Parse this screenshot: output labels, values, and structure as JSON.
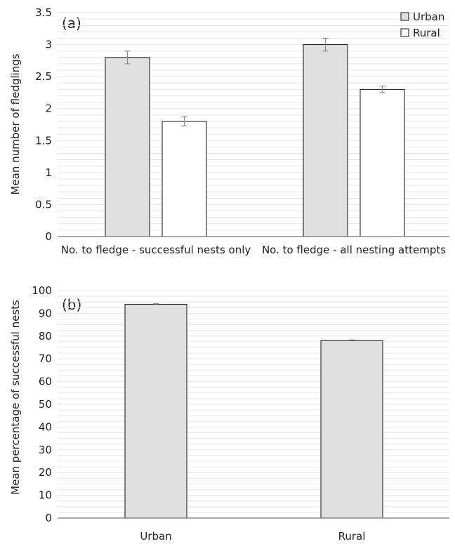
{
  "chart_data": [
    {
      "type": "bar",
      "panel_label": "(a)",
      "categories": [
        "No. to fledge - successful nests only",
        "No. to fledge - all nesting attempts"
      ],
      "series": [
        {
          "name": "Urban",
          "values": [
            2.8,
            3.0
          ],
          "errors": [
            0.1,
            0.1
          ],
          "color": "#e0e0e0"
        },
        {
          "name": "Rural",
          "values": [
            1.8,
            2.3
          ],
          "errors": [
            0.07,
            0.05
          ],
          "color": "#ffffff"
        }
      ],
      "ylabel": "Mean number of fledglings",
      "xlabel": "",
      "ylim": [
        0,
        3.5
      ],
      "yticks": [
        "0",
        "0.5",
        "1",
        "1.5",
        "2",
        "2.5",
        "3",
        "3.5"
      ],
      "ytick_values": [
        0,
        0.5,
        1,
        1.5,
        2,
        2.5,
        3,
        3.5
      ],
      "grid": true,
      "legend": "top-right"
    },
    {
      "type": "bar",
      "panel_label": "(b)",
      "categories": [
        "Urban",
        "Rural"
      ],
      "values": [
        94,
        78
      ],
      "errors": [
        0.3,
        0.3
      ],
      "bar_color": "#e0e0e0",
      "ylabel": "Mean percentage of successful nests",
      "xlabel": "",
      "ylim": [
        0,
        100
      ],
      "yticks": [
        "0",
        "10",
        "20",
        "30",
        "40",
        "50",
        "60",
        "70",
        "80",
        "90",
        "100"
      ],
      "ytick_values": [
        0,
        10,
        20,
        30,
        40,
        50,
        60,
        70,
        80,
        90,
        100
      ],
      "grid": true
    }
  ]
}
